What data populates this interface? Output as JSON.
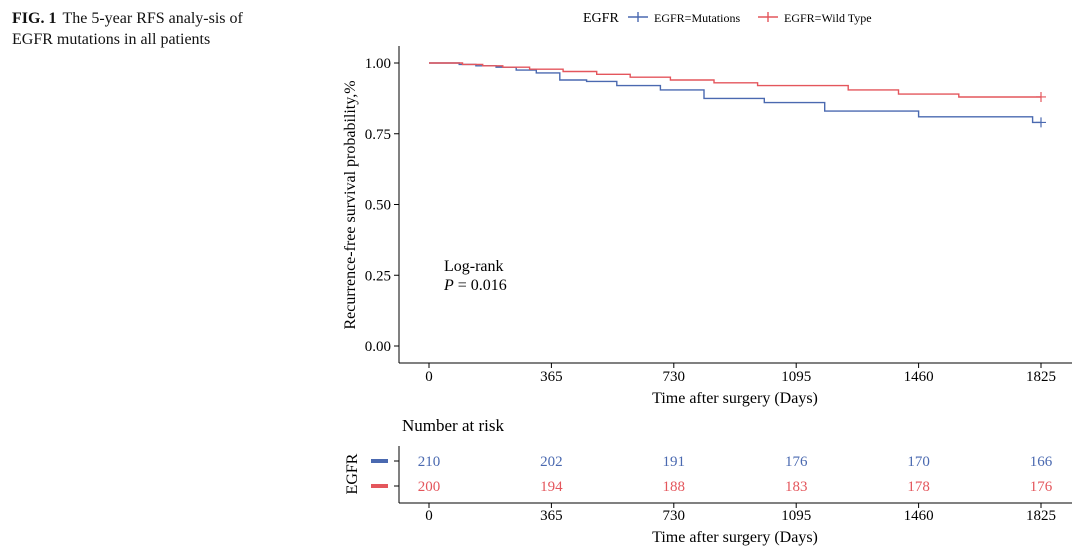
{
  "caption": {
    "figure_label": "FIG. 1",
    "text": "The 5-year RFS analy-sis of EGFR mutations in all patients"
  },
  "annotation": {
    "line1": "Log-rank",
    "p_label": "P",
    "p_value": " = 0.016"
  },
  "risk_table": {
    "title": "Number at risk",
    "ylabel": "EGFR",
    "xlabel": "Time after surgery (Days)",
    "ticks": [
      0,
      365,
      730,
      1095,
      1460,
      1825
    ],
    "rows": [
      {
        "name": "EGFR=Mutations",
        "color": "#4a69b0",
        "values": [
          210,
          202,
          191,
          176,
          170,
          166
        ]
      },
      {
        "name": "EGFR=Wild Type",
        "color": "#e4565c",
        "values": [
          200,
          194,
          188,
          183,
          178,
          176
        ]
      }
    ]
  },
  "chart_data": {
    "type": "line",
    "title": "",
    "xlabel": "Time after surgery (Days)",
    "ylabel": "Recurrence-free survival probability,%",
    "xlim": [
      0,
      1825
    ],
    "ylim": [
      0,
      1
    ],
    "x_ticks": [
      0,
      365,
      730,
      1095,
      1460,
      1825
    ],
    "y_ticks": [
      "0.00",
      "0.25",
      "0.50",
      "0.75",
      "1.00"
    ],
    "grid": false,
    "step": true,
    "legend": {
      "title": "EGFR",
      "position": "top"
    },
    "series": [
      {
        "name": "EGFR=Mutations",
        "color": "#4a69b0",
        "x": [
          0,
          90,
          140,
          200,
          260,
          320,
          390,
          470,
          560,
          690,
          820,
          1000,
          1180,
          1460,
          1800,
          1825
        ],
        "y": [
          1.0,
          0.995,
          0.99,
          0.985,
          0.975,
          0.965,
          0.94,
          0.935,
          0.92,
          0.905,
          0.875,
          0.86,
          0.83,
          0.81,
          0.79,
          0.79
        ]
      },
      {
        "name": "EGFR=Wild Type",
        "color": "#e4565c",
        "x": [
          0,
          100,
          160,
          220,
          300,
          400,
          500,
          600,
          720,
          850,
          980,
          1250,
          1400,
          1580,
          1825
        ],
        "y": [
          1.0,
          0.995,
          0.99,
          0.985,
          0.978,
          0.97,
          0.96,
          0.95,
          0.94,
          0.93,
          0.92,
          0.905,
          0.89,
          0.88,
          0.88
        ]
      }
    ]
  }
}
